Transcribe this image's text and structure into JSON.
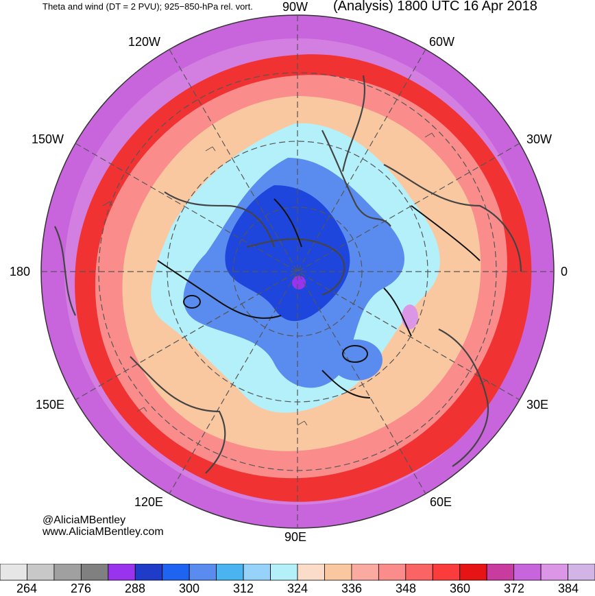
{
  "title_left": "Theta and wind (DT = 2 PVU); 925−850-hPa rel. vort.",
  "title_right": "(Analysis) 1800 UTC 16 Apr 2018",
  "longitude_labels": {
    "top": "90W",
    "bottom": "90E",
    "left": "180",
    "right": "0",
    "upper_left_1": "120W",
    "upper_left_2": "150W",
    "upper_right_1": "60W",
    "upper_right_2": "30W",
    "lower_left_1": "150E",
    "lower_left_2": "120E",
    "lower_right_1": "30E",
    "lower_right_2": "60E"
  },
  "credit": {
    "handle": "@AliciaMBentley",
    "site": "www.AliciaMBentley.com"
  },
  "colorbar": {
    "colors": [
      "#e6e6e6",
      "#c8c8c8",
      "#a0a0a0",
      "#808080",
      "#9933ee",
      "#1e3cc8",
      "#1e64f0",
      "#5a8cf0",
      "#4ab4f0",
      "#96d2fa",
      "#b4f0fa",
      "#fadcc8",
      "#fac8a0",
      "#faaaa0",
      "#fa8c8c",
      "#fa6464",
      "#fa3c3c",
      "#e61414",
      "#c83ca0",
      "#c864dc",
      "#dc96e6",
      "#d2b4e6"
    ],
    "tick_labels": [
      "264",
      "276",
      "288",
      "300",
      "312",
      "324",
      "336",
      "348",
      "360",
      "372",
      "384"
    ]
  },
  "colors": {
    "outer_magenta": "#c864dc",
    "warm_red": "#f03232",
    "peach": "#fac8a0",
    "cold_blue": "#3c78f0",
    "deep_blue": "#1e46dc",
    "light_blue": "#96d2fa"
  }
}
